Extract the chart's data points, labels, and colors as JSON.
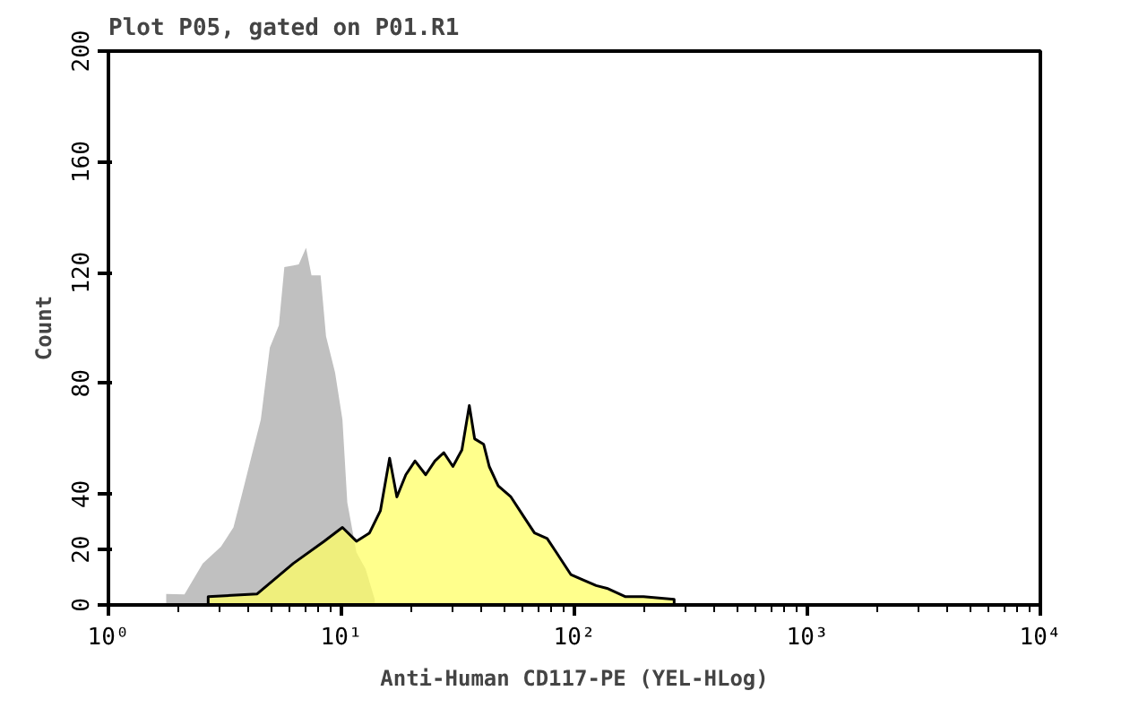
{
  "chart_data": {
    "type": "area",
    "title": "Plot P05, gated on P01.R1",
    "xlabel": "Anti-Human CD117-PE (YEL-HLog)",
    "ylabel": "Count",
    "log": "x",
    "grid": false,
    "xlim": [
      1,
      10000
    ],
    "xticks": [
      {
        "value": 1,
        "label": "10⁰"
      },
      {
        "value": 10,
        "label": "10¹"
      },
      {
        "value": 100,
        "label": "10²"
      },
      {
        "value": 1000,
        "label": "10³"
      },
      {
        "value": 10000,
        "label": "10⁴"
      }
    ],
    "ylim": [
      0,
      200
    ],
    "yticks": [
      0,
      20,
      40,
      80,
      120,
      160,
      200
    ],
    "series": [
      {
        "color": "#c0c0c0",
        "x": [
          1.77,
          2.12,
          2.54,
          3.04,
          3.44,
          3.77,
          4.12,
          4.51,
          4.93,
          5.39,
          5.69,
          6.22,
          6.56,
          7.05,
          7.44,
          8.14,
          8.59,
          9.39,
          10.1,
          10.6,
          11.6,
          12.7,
          13.9
        ],
        "values": [
          4,
          3.8,
          15,
          21,
          28,
          41,
          54,
          67,
          93,
          101,
          122,
          122.6,
          123,
          129,
          119,
          119,
          97,
          84,
          67,
          37,
          19,
          13,
          2
        ]
      },
      {
        "color": "#ffff66",
        "x": [
          2.68,
          4.35,
          6.22,
          8.43,
          10.1,
          11.6,
          13.2,
          14.7,
          16.1,
          17.3,
          18.9,
          20.7,
          23.0,
          25.2,
          27.5,
          30.1,
          32.9,
          35.4,
          37.3,
          40.8,
          43.1,
          47.1,
          53.4,
          60.5,
          67.4,
          76.4,
          83.6,
          96.5,
          109,
          124,
          138,
          165,
          198,
          268
        ],
        "values": [
          3,
          4,
          15,
          23,
          28,
          23,
          26,
          34,
          53,
          39,
          47,
          52,
          47,
          52,
          55,
          50,
          56,
          72,
          60,
          58,
          50,
          43,
          39,
          32,
          26,
          24,
          19,
          11,
          9,
          7,
          6,
          3,
          3,
          2
        ]
      }
    ]
  }
}
